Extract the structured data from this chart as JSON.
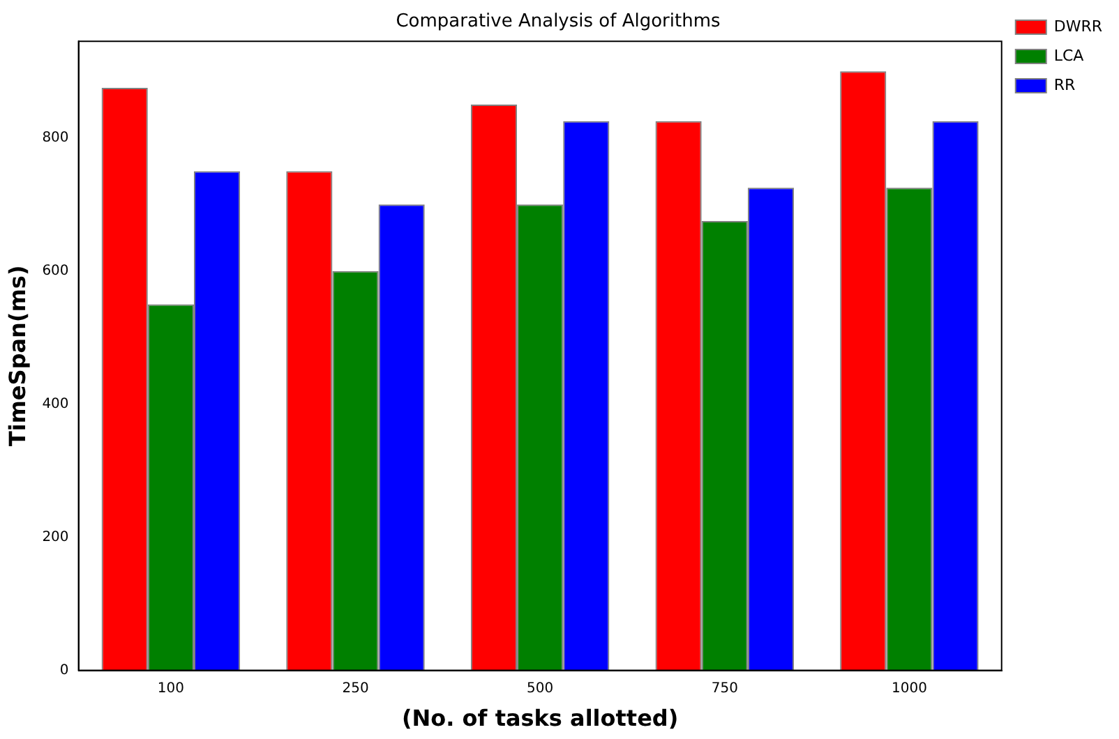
{
  "chart_data": {
    "type": "bar",
    "title": "Comparative Analysis of Algorithms",
    "xlabel": "(No. of tasks allotted)",
    "ylabel": "TimeSpan(ms)",
    "categories": [
      "100",
      "250",
      "500",
      "750",
      "1000"
    ],
    "series": [
      {
        "name": "DWRR",
        "color": "#ff0000",
        "values": [
          875,
          750,
          850,
          825,
          900
        ]
      },
      {
        "name": "LCA",
        "color": "#008000",
        "values": [
          550,
          600,
          700,
          675,
          725
        ]
      },
      {
        "name": "RR",
        "color": "#0000ff",
        "values": [
          750,
          700,
          825,
          725,
          825
        ]
      }
    ],
    "ylim": [
      0,
      945
    ],
    "yticks": [
      0,
      200,
      400,
      600,
      800
    ],
    "grid": false,
    "legend": "top right"
  }
}
